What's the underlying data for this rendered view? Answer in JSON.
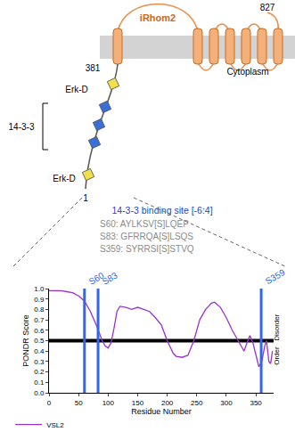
{
  "diagram": {
    "protein": "iRhom2",
    "end_label": "827",
    "tm_start_label": "381",
    "start_label": "1",
    "region_label": "Cytoplasm",
    "upper_domain": "Erk-D",
    "middle_domain": "14-3-3",
    "lower_domain": "Erk-D",
    "binding_title": "14-3-3 binding site [-6:4]",
    "binding_sites": [
      "S60:  AYLKSV[S]LQEP",
      "S83:  GFRRQA[S]LSQS",
      "S359: SYRRSI[S]STVQ"
    ]
  },
  "chart_data": {
    "type": "line",
    "xlabel": "Residue Number",
    "ylabel": "PONDR Score",
    "x": [
      0,
      10,
      20,
      30,
      40,
      50,
      60,
      70,
      80,
      90,
      95,
      100,
      105,
      110,
      115,
      120,
      130,
      140,
      150,
      160,
      170,
      180,
      190,
      200,
      210,
      215,
      225,
      235,
      245,
      255,
      265,
      275,
      280,
      290,
      300,
      310,
      320,
      330,
      335,
      340,
      345,
      350,
      355,
      360,
      365,
      368,
      372,
      375,
      378
    ],
    "series": [
      {
        "name": "VSL2",
        "color": "#9933cc",
        "values": [
          0.98,
          0.98,
          0.98,
          0.97,
          0.96,
          0.93,
          0.88,
          0.78,
          0.65,
          0.5,
          0.45,
          0.43,
          0.48,
          0.62,
          0.78,
          0.83,
          0.82,
          0.8,
          0.82,
          0.8,
          0.78,
          0.72,
          0.65,
          0.5,
          0.38,
          0.35,
          0.34,
          0.36,
          0.5,
          0.7,
          0.8,
          0.86,
          0.87,
          0.82,
          0.72,
          0.6,
          0.5,
          0.4,
          0.48,
          0.55,
          0.48,
          0.35,
          0.25,
          0.3,
          0.45,
          0.5,
          0.3,
          0.28,
          0.4
        ]
      }
    ],
    "xlim": [
      0,
      380
    ],
    "xticks": [
      0,
      50,
      100,
      150,
      200,
      250,
      300,
      350
    ],
    "ylim": [
      0,
      1
    ],
    "yticks": [
      {
        "value": 0,
        "label": "0.0"
      },
      {
        "value": 0.1,
        "label": "0.1"
      },
      {
        "value": 0.2,
        "label": "0.2"
      },
      {
        "value": 0.3,
        "label": "0.3"
      },
      {
        "value": 0.4,
        "label": "0.4"
      },
      {
        "value": 0.5,
        "label": "0.5"
      },
      {
        "value": 0.6,
        "label": "0.6"
      },
      {
        "value": 0.7,
        "label": "0.7"
      },
      {
        "value": 0.8,
        "label": "0.8"
      },
      {
        "value": 0.9,
        "label": "0.9"
      },
      {
        "value": 1,
        "label": "1.0"
      }
    ],
    "threshold": 0.5,
    "sites": [
      {
        "label": "S60",
        "x": 60
      },
      {
        "label": "S83",
        "x": 83
      },
      {
        "label": "S359",
        "x": 359
      }
    ],
    "sites_color": "#3366ee",
    "upper_label": "Disorder",
    "lower_label": "Order",
    "legend": "bottom left",
    "grid": false
  }
}
